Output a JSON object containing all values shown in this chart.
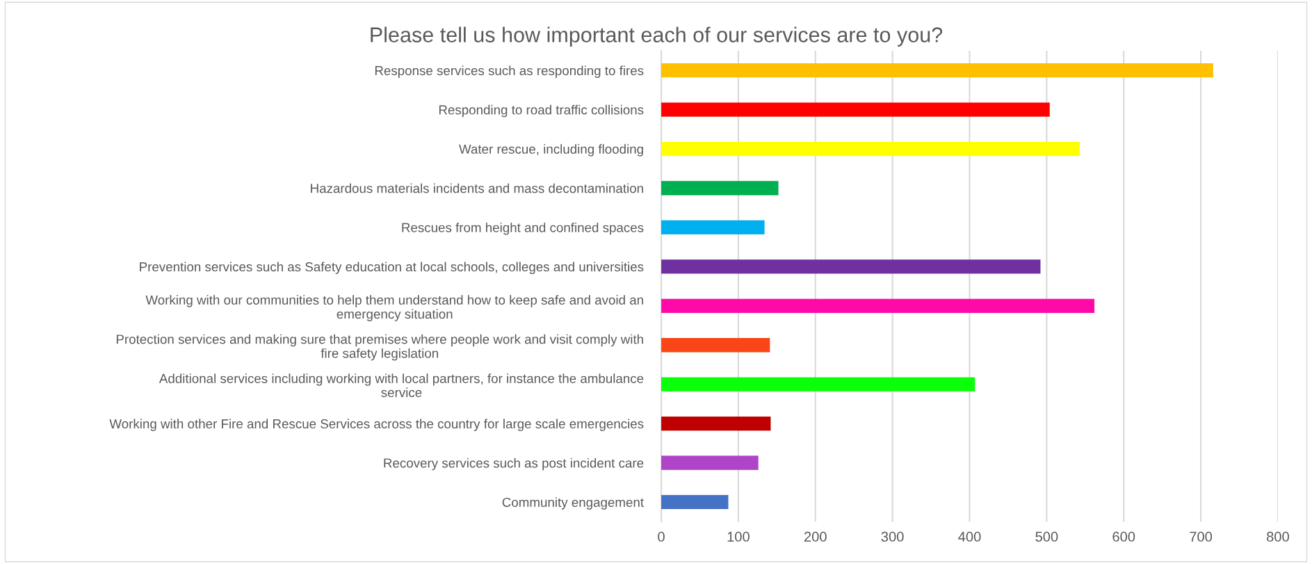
{
  "chart_data": {
    "type": "bar",
    "orientation": "horizontal",
    "title": "Please tell us how important each of our services are to you?",
    "categories": [
      "Response services such as responding to fires",
      "Responding to road traffic collisions",
      "Water rescue, including flooding",
      "Hazardous materials incidents and mass decontamination",
      "Rescues from height and confined spaces",
      "Prevention services such as Safety education at local schools, colleges and universities",
      "Working with our communities to help them understand how to keep safe and avoid an\nemergency situation",
      "Protection services and making sure that premises where people work and visit comply with\nfire safety legislation",
      "Additional services including working with local partners, for instance the ambulance\nservice",
      "Working with other Fire and Rescue Services across the country for large scale emergencies",
      "Recovery services such as post incident care",
      "Community engagement"
    ],
    "values": [
      716,
      504,
      543,
      152,
      134,
      492,
      562,
      141,
      407,
      142,
      126,
      87
    ],
    "colors": [
      "#ffc000",
      "#ff0000",
      "#ffff00",
      "#00b050",
      "#00b0f0",
      "#7030a0",
      "#ff0aa8",
      "#fa4616",
      "#0aff0a",
      "#c00000",
      "#b044c8",
      "#4472c4"
    ],
    "xlim": [
      0,
      800
    ],
    "xticks": [
      0,
      100,
      200,
      300,
      400,
      500,
      600,
      700,
      800
    ],
    "grid": "x"
  }
}
